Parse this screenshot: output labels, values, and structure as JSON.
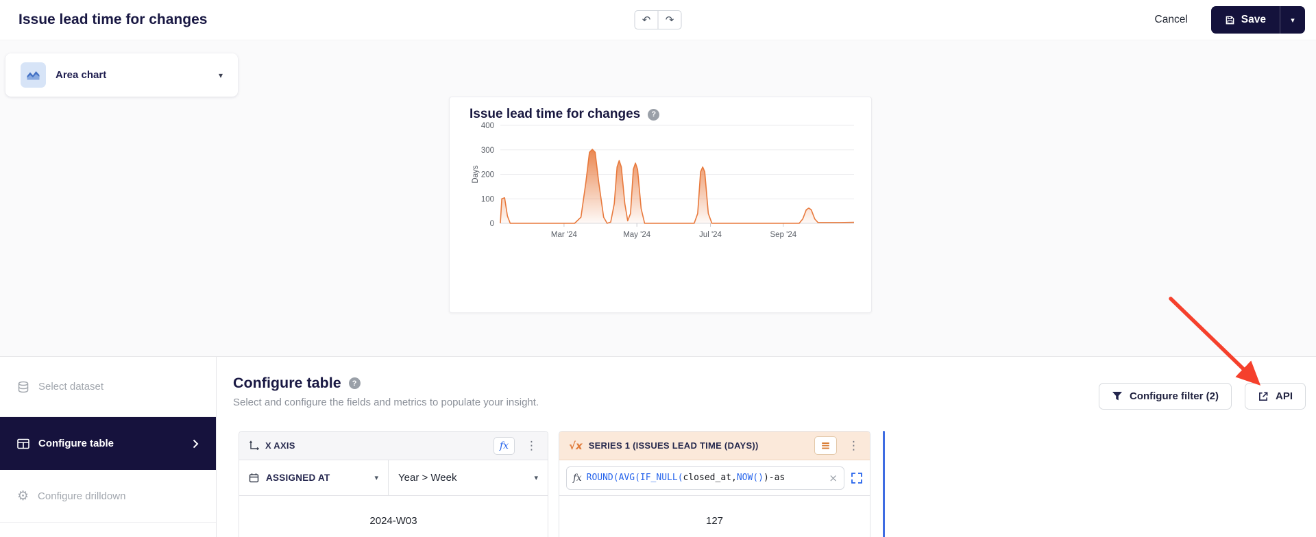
{
  "topbar": {
    "title": "Issue lead time for changes",
    "cancel_label": "Cancel",
    "save_label": "Save"
  },
  "chart_type": {
    "label": "Area chart"
  },
  "chart_card": {
    "title": "Issue lead time for changes"
  },
  "chart_data": {
    "type": "area",
    "title": "Issue lead time for changes",
    "xlabel": "",
    "ylabel": "Days",
    "ylim": [
      0,
      400
    ],
    "yticks": [
      0,
      100,
      200,
      300,
      400
    ],
    "xticks": [
      "Mar '24",
      "May '24",
      "Jul '24",
      "Sep '24"
    ],
    "xtick_positions": [
      0.18,
      0.386,
      0.594,
      0.8
    ],
    "series_name": "Issues lead time (days)",
    "grid": true,
    "legend": false,
    "points": [
      [
        0.0,
        0
      ],
      [
        0.004,
        100
      ],
      [
        0.012,
        104
      ],
      [
        0.02,
        30
      ],
      [
        0.028,
        0
      ],
      [
        0.21,
        0
      ],
      [
        0.228,
        25
      ],
      [
        0.242,
        170
      ],
      [
        0.252,
        290
      ],
      [
        0.26,
        302
      ],
      [
        0.268,
        290
      ],
      [
        0.278,
        170
      ],
      [
        0.292,
        25
      ],
      [
        0.302,
        0
      ],
      [
        0.312,
        5
      ],
      [
        0.322,
        80
      ],
      [
        0.33,
        230
      ],
      [
        0.336,
        256
      ],
      [
        0.342,
        230
      ],
      [
        0.352,
        80
      ],
      [
        0.36,
        10
      ],
      [
        0.368,
        40
      ],
      [
        0.376,
        220
      ],
      [
        0.382,
        246
      ],
      [
        0.388,
        220
      ],
      [
        0.398,
        60
      ],
      [
        0.408,
        0
      ],
      [
        0.548,
        0
      ],
      [
        0.558,
        40
      ],
      [
        0.566,
        210
      ],
      [
        0.572,
        230
      ],
      [
        0.578,
        210
      ],
      [
        0.588,
        40
      ],
      [
        0.598,
        0
      ],
      [
        0.845,
        0
      ],
      [
        0.855,
        18
      ],
      [
        0.865,
        55
      ],
      [
        0.872,
        62
      ],
      [
        0.879,
        55
      ],
      [
        0.889,
        18
      ],
      [
        0.898,
        3
      ],
      [
        0.96,
        3
      ],
      [
        1.0,
        4
      ]
    ]
  },
  "sidebar": {
    "items": [
      {
        "label": "Select dataset"
      },
      {
        "label": "Configure table"
      },
      {
        "label": "Configure drilldown"
      }
    ]
  },
  "config": {
    "title": "Configure table",
    "subtitle": "Select and configure the fields and metrics to populate your insight.",
    "filter_button_label": "Configure filter (2)",
    "api_button_label": "API",
    "x_axis": {
      "header": "X AXIS",
      "field": "ASSIGNED AT",
      "granularity": "Year > Week",
      "preview_value": "2024-W03"
    },
    "series": {
      "header": "SERIES 1 (ISSUES LEAD TIME (DAYS))",
      "preview_value": "127",
      "formula_tokens": [
        {
          "text": "ROUND(",
          "type": "fn"
        },
        {
          "text": "AVG(",
          "type": "fn"
        },
        {
          "text": "IF_NULL(",
          "type": "fn"
        },
        {
          "text": "closed_at",
          "type": "id"
        },
        {
          "text": ",",
          "type": "p"
        },
        {
          "text": "NOW()",
          "type": "fn"
        },
        {
          "text": ")-as",
          "type": "p"
        }
      ]
    }
  },
  "icons": {
    "undo": "↶",
    "redo": "↷",
    "caret": "▾",
    "kebab": "⋮",
    "gear": "⚙",
    "help": "?",
    "fx": "fx",
    "sqrt_x": "√x",
    "hamburger": "≡",
    "close": "×"
  },
  "colors": {
    "brand_navy": "#14123c",
    "series_orange": "#e8793c",
    "series_header_bg": "#fbe9da",
    "insert_blue": "#3e6ce2",
    "arrow_red": "#f5402c",
    "function_blue": "#2563eb"
  }
}
